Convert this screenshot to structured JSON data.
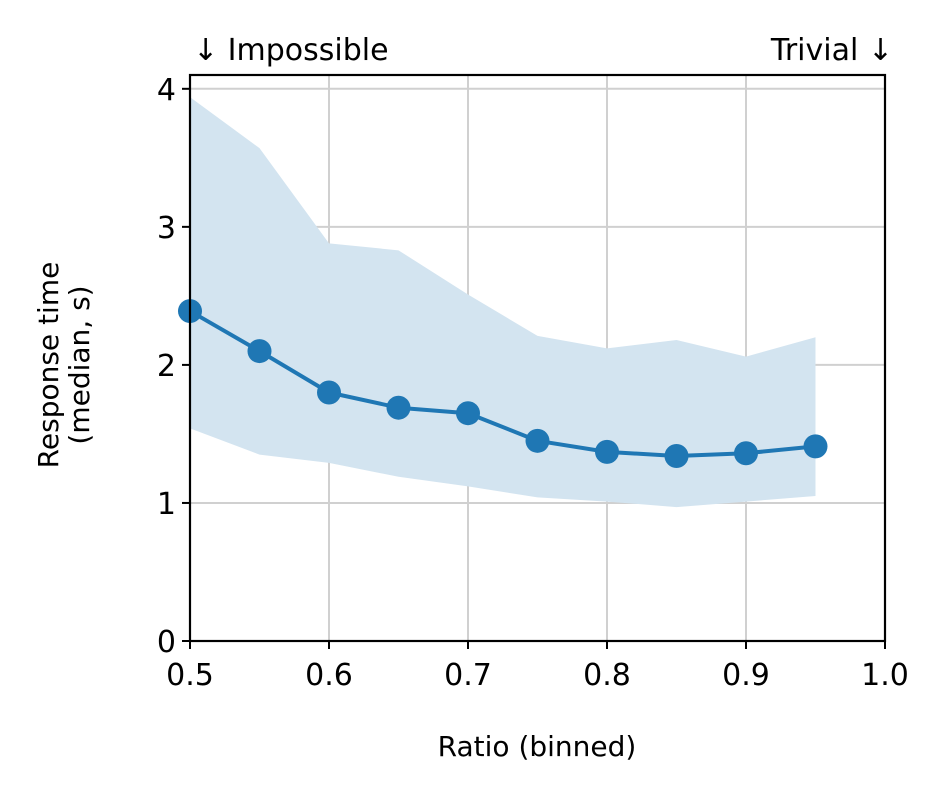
{
  "chart_data": {
    "type": "line",
    "xlabel": "Ratio (binned)",
    "ylabel_line1": "Response time",
    "ylabel_line2": "(median, s)",
    "xlim": [
      0.5,
      1.0
    ],
    "ylim": [
      0,
      4.1
    ],
    "xticks": [
      0.5,
      0.6,
      0.7,
      0.8,
      0.9,
      1.0
    ],
    "xtick_labels": [
      "0.5",
      "0.6",
      "0.7",
      "0.8",
      "0.9",
      "1.0"
    ],
    "yticks": [
      0,
      1,
      2,
      3,
      4
    ],
    "ytick_labels": [
      "0",
      "1",
      "2",
      "3",
      "4"
    ],
    "grid": true,
    "annotations": {
      "left": "↓ Impossible",
      "right": "Trivial ↓"
    },
    "series": [
      {
        "x": [
          0.5,
          0.55,
          0.6,
          0.65,
          0.7,
          0.75,
          0.8,
          0.85,
          0.9,
          0.95
        ],
        "y": [
          2.39,
          2.1,
          1.8,
          1.69,
          1.65,
          1.45,
          1.37,
          1.34,
          1.36,
          1.41
        ],
        "band_lower": [
          1.54,
          1.35,
          1.29,
          1.19,
          1.12,
          1.04,
          1.01,
          0.97,
          1.01,
          1.05
        ],
        "band_upper": [
          3.94,
          3.57,
          2.88,
          2.83,
          2.51,
          2.21,
          2.12,
          2.18,
          2.06,
          2.2
        ],
        "color": "#1f77b4",
        "band_color": "#d3e4f0"
      }
    ]
  }
}
